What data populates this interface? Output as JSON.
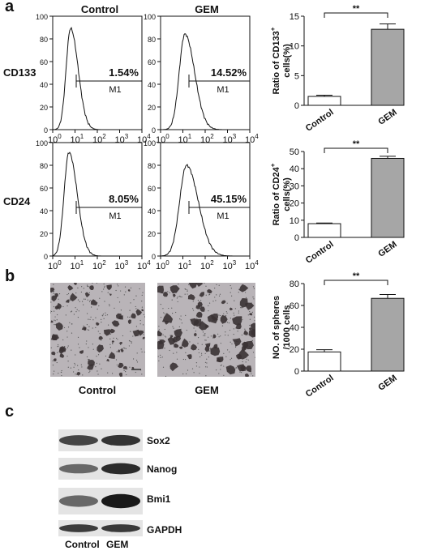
{
  "panels": {
    "a": "a",
    "b": "b",
    "c": "c"
  },
  "flow": {
    "col_headers": [
      "Control",
      "GEM"
    ],
    "row_labels": [
      "CD133",
      "CD24"
    ],
    "cells": [
      {
        "percent": "1.54%",
        "gate": "M1"
      },
      {
        "percent": "14.52%",
        "gate": "M1"
      },
      {
        "percent": "8.05%",
        "gate": "M1"
      },
      {
        "percent": "45.15%",
        "gate": "M1"
      }
    ],
    "y_ticks": [
      "0",
      "20",
      "40",
      "60",
      "80",
      "100"
    ],
    "x_ticks": [
      {
        "base": "10",
        "exp": "0"
      },
      {
        "base": "10",
        "exp": "1"
      },
      {
        "base": "10",
        "exp": "2"
      },
      {
        "base": "10",
        "exp": "3"
      },
      {
        "base": "10",
        "exp": "4"
      }
    ]
  },
  "chart_data": [
    {
      "type": "bar",
      "categories": [
        "Control",
        "GEM"
      ],
      "values": [
        1.5,
        12.8
      ],
      "errors": [
        0.2,
        0.9
      ],
      "ylabel_main": "Ratio of CD133",
      "ylabel_sup": "+",
      "ylabel_line2": "cells(%)",
      "ylim": [
        0,
        15
      ],
      "yticks": [
        0,
        5,
        10,
        15
      ],
      "significance": "**",
      "colors": [
        "#ffffff",
        "#a6a6a6"
      ]
    },
    {
      "type": "bar",
      "categories": [
        "Control",
        "GEM"
      ],
      "values": [
        8.0,
        46.0
      ],
      "errors": [
        0.4,
        1.2
      ],
      "ylabel_main": "Ratio of CD24",
      "ylabel_sup": "+",
      "ylabel_line2": "cells(%)",
      "ylim": [
        0,
        50
      ],
      "yticks": [
        0,
        10,
        20,
        30,
        40,
        50
      ],
      "significance": "**",
      "colors": [
        "#ffffff",
        "#a6a6a6"
      ]
    },
    {
      "type": "bar",
      "categories": [
        "Control",
        "GEM"
      ],
      "values": [
        17.5,
        66.5
      ],
      "errors": [
        2.0,
        3.5
      ],
      "ylabel_main": "NO. of spheres",
      "ylabel_sup": "",
      "ylabel_line2": "/1000 cells",
      "ylim": [
        0,
        80
      ],
      "yticks": [
        0,
        20,
        40,
        60,
        80
      ],
      "significance": "**",
      "colors": [
        "#ffffff",
        "#a6a6a6"
      ]
    }
  ],
  "spheres": {
    "labels": [
      "Control",
      "GEM"
    ]
  },
  "western": {
    "proteins": [
      "Sox2",
      "Nanog",
      "Bmi1",
      "GAPDH"
    ],
    "lanes": [
      "Control",
      "GEM"
    ]
  }
}
